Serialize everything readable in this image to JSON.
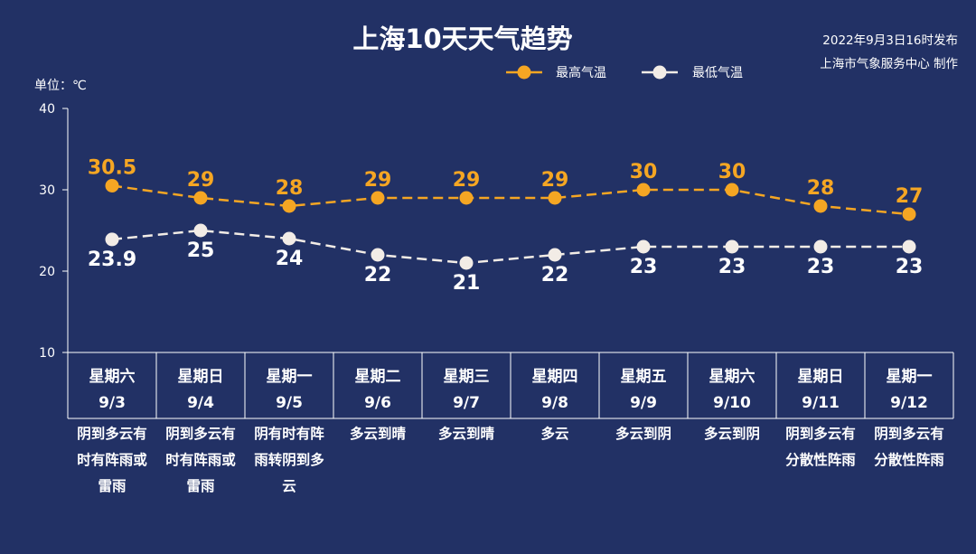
{
  "header": {
    "title": "上海10天天气趋势",
    "publish_time": "2022年9月3日16时发布",
    "publisher": "上海市气象服务中心 制作",
    "unit": "单位：℃"
  },
  "colors": {
    "background": "#223165",
    "high": "#f5a623",
    "low": "#f2ece6",
    "axis": "#ffffff"
  },
  "chart_data": {
    "type": "line",
    "title": "上海10天天气趋势",
    "ylabel": "单位：℃",
    "ylim": [
      10,
      40
    ],
    "yticks": [
      10,
      20,
      30,
      40
    ],
    "grid": false,
    "legend_position": "top-right",
    "categories": [
      "9/3",
      "9/4",
      "9/5",
      "9/6",
      "9/7",
      "9/8",
      "9/9",
      "9/10",
      "9/11",
      "9/12"
    ],
    "weekdays": [
      "星期六",
      "星期日",
      "星期一",
      "星期二",
      "星期三",
      "星期四",
      "星期五",
      "星期六",
      "星期日",
      "星期一"
    ],
    "conditions": [
      [
        "阴到多云有",
        "时有阵雨或",
        "雷雨"
      ],
      [
        "阴到多云有",
        "时有阵雨或",
        "雷雨"
      ],
      [
        "阴有时有阵",
        "雨转阴到多",
        "云"
      ],
      [
        "多云到晴"
      ],
      [
        "多云到晴"
      ],
      [
        "多云"
      ],
      [
        "多云到阴"
      ],
      [
        "多云到阴"
      ],
      [
        "阴到多云有",
        "分散性阵雨"
      ],
      [
        "阴到多云有",
        "分散性阵雨"
      ]
    ],
    "series": [
      {
        "name": "最高气温",
        "values": [
          30.5,
          29,
          28,
          29,
          29,
          29,
          30,
          30,
          28,
          27
        ]
      },
      {
        "name": "最低气温",
        "values": [
          23.9,
          25,
          24,
          22,
          21,
          22,
          23,
          23,
          23,
          23
        ]
      }
    ]
  }
}
